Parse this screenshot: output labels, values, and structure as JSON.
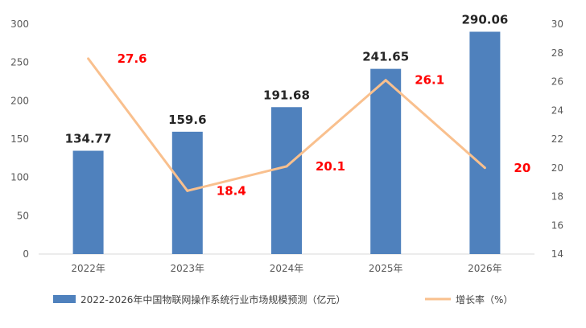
{
  "chart_data": {
    "type": "bar",
    "categories": [
      "2022年",
      "2023年",
      "2024年",
      "2025年",
      "2026年"
    ],
    "series": [
      {
        "name": "2022-2026年中国物联网操作系统行业市场规模预测（亿元）",
        "type": "bar",
        "axis": "left",
        "values": [
          134.77,
          159.6,
          191.68,
          241.65,
          290.06
        ],
        "labels": [
          "134.77",
          "159.6",
          "191.68",
          "241.65",
          "290.06"
        ],
        "color": "#4f81bd"
      },
      {
        "name": "增长率（%）",
        "type": "line",
        "axis": "right",
        "values": [
          27.6,
          18.4,
          20.1,
          26.1,
          20
        ],
        "labels": [
          "27.6",
          "18.4",
          "20.1",
          "26.1",
          "20"
        ],
        "color": "#f9c08e",
        "label_color": "#ff0000"
      }
    ],
    "y_left": {
      "ylim": [
        0,
        300
      ],
      "ticks": [
        "0",
        "50",
        "100",
        "150",
        "200",
        "250",
        "300"
      ]
    },
    "y_right": {
      "ylim": [
        14,
        30
      ],
      "ticks": [
        "14",
        "16",
        "18",
        "20",
        "22",
        "24",
        "26",
        "28",
        "30"
      ]
    },
    "grid": false,
    "legend_position": "bottom"
  }
}
